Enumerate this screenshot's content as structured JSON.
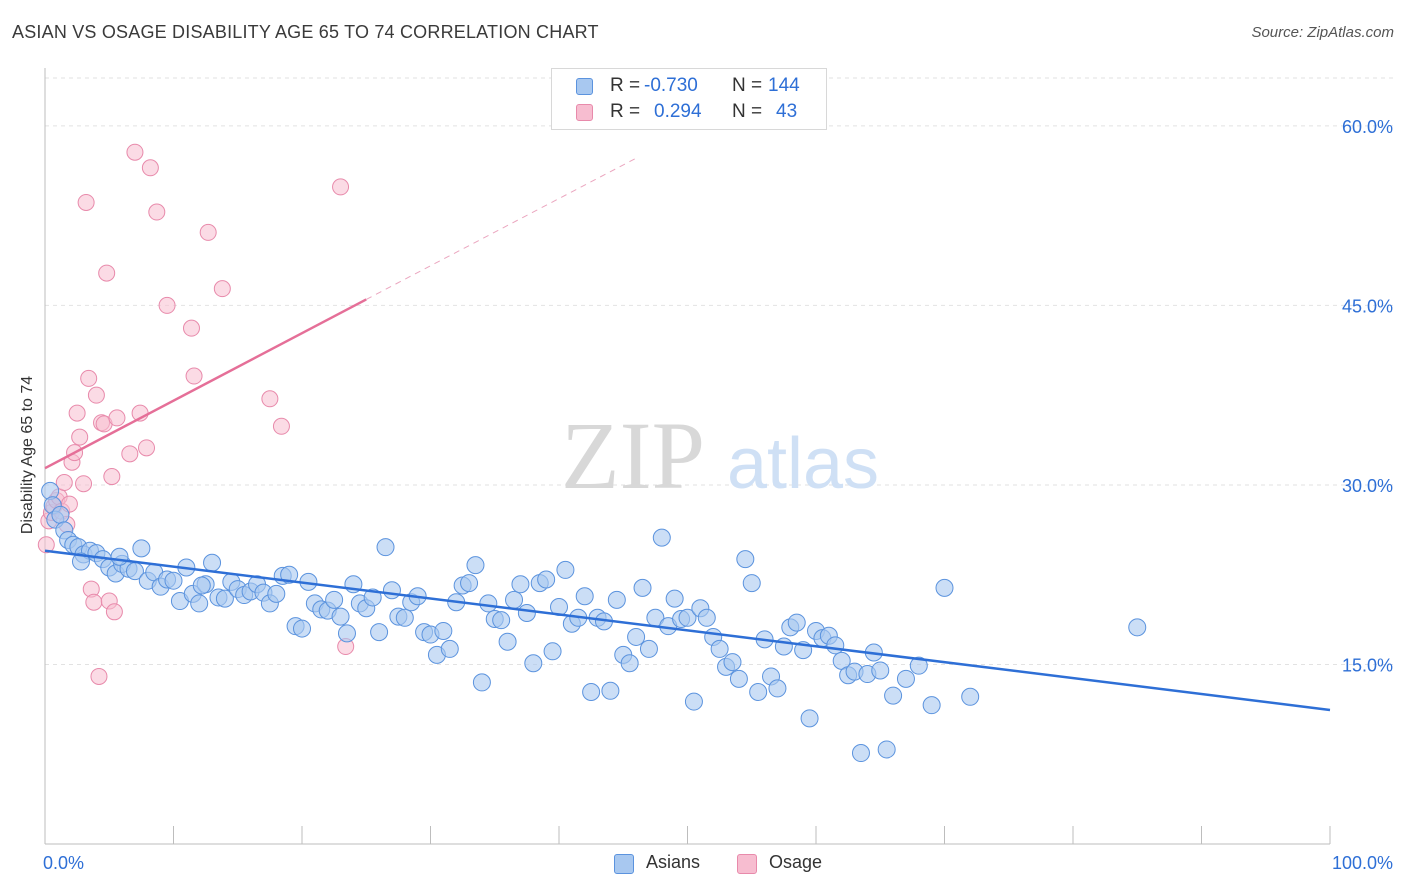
{
  "header": {
    "title": "ASIAN VS OSAGE DISABILITY AGE 65 TO 74 CORRELATION CHART",
    "source": "Source: ZipAtlas.com"
  },
  "watermark": {
    "zip": "ZIP",
    "atlas": "atlas"
  },
  "legend": {
    "rows": [
      {
        "r_label": "R =",
        "r_value": "-0.730",
        "n_label": "N =",
        "n_value": "144"
      },
      {
        "r_label": "R =",
        "r_value": "0.294",
        "n_label": "N =",
        "n_value": "43"
      }
    ]
  },
  "bottom_legend": {
    "asians": "Asians",
    "osage": "Osage"
  },
  "colors": {
    "asian_fill": "#a8c8f0",
    "asian_stroke": "#5b93de",
    "asian_line": "#2e6fd6",
    "osage_fill": "#f7bdd0",
    "osage_stroke": "#e88aab",
    "osage_line": "#e56f98",
    "axis_text": "#2e6fd6",
    "grid": "#e2e2e2"
  },
  "chart_data": {
    "type": "scatter",
    "title": "ASIAN VS OSAGE DISABILITY AGE 65 TO 74 CORRELATION CHART",
    "xlabel": "",
    "ylabel": "Disability Age 65 to 74",
    "xlim": [
      0,
      100
    ],
    "ylim": [
      0,
      64
    ],
    "x_tick_labels": [
      "0.0%",
      "100.0%"
    ],
    "y_ticks": [
      15,
      30,
      45,
      60
    ],
    "y_tick_labels": [
      "15.0%",
      "30.0%",
      "45.0%",
      "60.0%"
    ],
    "grid": true,
    "legend_position": "top-center",
    "series": [
      {
        "name": "Asians",
        "r": -0.73,
        "n": 144,
        "trend": {
          "x": [
            0,
            100
          ],
          "y": [
            24.5,
            11.2
          ]
        },
        "points": [
          [
            0.4,
            29.5
          ],
          [
            0.6,
            28.3
          ],
          [
            0.8,
            27.1
          ],
          [
            1.2,
            27.5
          ],
          [
            1.5,
            26.2
          ],
          [
            1.8,
            25.4
          ],
          [
            2.2,
            25.0
          ],
          [
            2.6,
            24.8
          ],
          [
            3.0,
            24.2
          ],
          [
            3.5,
            24.5
          ],
          [
            4.0,
            24.3
          ],
          [
            4.5,
            23.8
          ],
          [
            5.0,
            23.1
          ],
          [
            5.5,
            22.6
          ],
          [
            6.0,
            23.4
          ],
          [
            6.5,
            23.0
          ],
          [
            7.0,
            22.8
          ],
          [
            7.5,
            24.7
          ],
          [
            8.0,
            22.0
          ],
          [
            8.5,
            22.7
          ],
          [
            9.0,
            21.5
          ],
          [
            9.5,
            22.1
          ],
          [
            10.0,
            22.0
          ],
          [
            10.5,
            20.3
          ],
          [
            11.0,
            23.1
          ],
          [
            11.5,
            20.9
          ],
          [
            12.0,
            20.1
          ],
          [
            12.5,
            21.7
          ],
          [
            13.0,
            23.5
          ],
          [
            13.5,
            20.6
          ],
          [
            14.0,
            20.5
          ],
          [
            14.5,
            21.9
          ],
          [
            15.0,
            21.3
          ],
          [
            15.5,
            20.8
          ],
          [
            16.0,
            21.1
          ],
          [
            16.5,
            21.7
          ],
          [
            17.0,
            21.0
          ],
          [
            17.5,
            20.1
          ],
          [
            18.0,
            20.9
          ],
          [
            18.5,
            22.4
          ],
          [
            19.0,
            22.5
          ],
          [
            19.5,
            18.2
          ],
          [
            20.0,
            18.0
          ],
          [
            20.5,
            21.9
          ],
          [
            21.0,
            20.1
          ],
          [
            21.5,
            19.6
          ],
          [
            22.0,
            19.5
          ],
          [
            22.5,
            20.4
          ],
          [
            23.0,
            19.0
          ],
          [
            23.5,
            17.6
          ],
          [
            24.0,
            21.7
          ],
          [
            24.5,
            20.1
          ],
          [
            25.0,
            19.7
          ],
          [
            25.5,
            20.6
          ],
          [
            26.0,
            17.7
          ],
          [
            26.5,
            24.8
          ],
          [
            27.0,
            21.2
          ],
          [
            27.5,
            19.0
          ],
          [
            28.0,
            18.9
          ],
          [
            28.5,
            20.2
          ],
          [
            29.0,
            20.7
          ],
          [
            29.5,
            17.7
          ],
          [
            30.0,
            17.5
          ],
          [
            30.5,
            15.8
          ],
          [
            31.0,
            17.8
          ],
          [
            31.5,
            16.3
          ],
          [
            32.0,
            20.2
          ],
          [
            32.5,
            21.6
          ],
          [
            33.0,
            21.8
          ],
          [
            33.5,
            23.3
          ],
          [
            34.0,
            13.5
          ],
          [
            34.5,
            20.1
          ],
          [
            35.0,
            18.8
          ],
          [
            35.5,
            18.7
          ],
          [
            36.0,
            16.9
          ],
          [
            36.5,
            20.4
          ],
          [
            37.0,
            21.7
          ],
          [
            37.5,
            19.3
          ],
          [
            38.0,
            15.1
          ],
          [
            38.5,
            21.8
          ],
          [
            39.0,
            22.1
          ],
          [
            39.5,
            16.1
          ],
          [
            40.0,
            19.8
          ],
          [
            40.5,
            22.9
          ],
          [
            41.0,
            18.4
          ],
          [
            41.5,
            18.9
          ],
          [
            42.0,
            20.7
          ],
          [
            42.5,
            12.7
          ],
          [
            43.0,
            18.9
          ],
          [
            43.5,
            18.6
          ],
          [
            44.0,
            12.8
          ],
          [
            44.5,
            20.4
          ],
          [
            45.0,
            15.8
          ],
          [
            45.5,
            15.1
          ],
          [
            46.0,
            17.3
          ],
          [
            46.5,
            21.4
          ],
          [
            47.0,
            16.3
          ],
          [
            47.5,
            18.9
          ],
          [
            48.0,
            25.6
          ],
          [
            48.5,
            18.2
          ],
          [
            49.0,
            20.5
          ],
          [
            49.5,
            18.8
          ],
          [
            50.0,
            18.9
          ],
          [
            50.5,
            11.9
          ],
          [
            51.0,
            19.7
          ],
          [
            51.5,
            18.9
          ],
          [
            52.0,
            17.3
          ],
          [
            52.5,
            16.3
          ],
          [
            53.0,
            14.8
          ],
          [
            53.5,
            15.2
          ],
          [
            54.0,
            13.8
          ],
          [
            54.5,
            23.8
          ],
          [
            55.0,
            21.8
          ],
          [
            55.5,
            12.7
          ],
          [
            56.0,
            17.1
          ],
          [
            56.5,
            14.0
          ],
          [
            57.0,
            13.0
          ],
          [
            57.5,
            16.5
          ],
          [
            58.0,
            18.1
          ],
          [
            58.5,
            18.5
          ],
          [
            59.0,
            16.2
          ],
          [
            59.5,
            10.5
          ],
          [
            60.0,
            17.8
          ],
          [
            60.5,
            17.2
          ],
          [
            61.0,
            17.4
          ],
          [
            61.5,
            16.6
          ],
          [
            62.0,
            15.3
          ],
          [
            62.5,
            14.1
          ],
          [
            63.0,
            14.4
          ],
          [
            63.5,
            7.6
          ],
          [
            64.0,
            14.2
          ],
          [
            64.5,
            16.0
          ],
          [
            65.0,
            14.5
          ],
          [
            65.5,
            7.9
          ],
          [
            66.0,
            12.4
          ],
          [
            67.0,
            13.8
          ],
          [
            68.0,
            14.9
          ],
          [
            69.0,
            11.6
          ],
          [
            70.0,
            21.4
          ],
          [
            72.0,
            12.3
          ],
          [
            85.0,
            18.1
          ],
          [
            2.8,
            23.6
          ],
          [
            5.8,
            24.0
          ],
          [
            12.2,
            21.6
          ]
        ]
      },
      {
        "name": "Osage",
        "r": 0.294,
        "n": 43,
        "trend_solid": {
          "x": [
            0,
            25
          ],
          "y": [
            31.4,
            45.5
          ]
        },
        "trend_dashed": {
          "x": [
            25,
            46
          ],
          "y": [
            45.5,
            57.3
          ]
        },
        "points": [
          [
            0.1,
            25.0
          ],
          [
            0.3,
            27.0
          ],
          [
            0.5,
            27.7
          ],
          [
            0.7,
            28.2
          ],
          [
            0.9,
            28.7
          ],
          [
            1.1,
            29.0
          ],
          [
            1.3,
            27.8
          ],
          [
            1.5,
            30.2
          ],
          [
            1.7,
            26.7
          ],
          [
            1.9,
            28.4
          ],
          [
            2.1,
            31.9
          ],
          [
            2.3,
            32.7
          ],
          [
            2.5,
            36.0
          ],
          [
            2.7,
            34.0
          ],
          [
            3.0,
            30.1
          ],
          [
            3.2,
            53.6
          ],
          [
            3.4,
            38.9
          ],
          [
            3.6,
            21.3
          ],
          [
            3.8,
            20.2
          ],
          [
            4.0,
            37.5
          ],
          [
            4.2,
            14.0
          ],
          [
            4.4,
            35.2
          ],
          [
            4.6,
            35.1
          ],
          [
            4.8,
            47.7
          ],
          [
            5.0,
            20.3
          ],
          [
            5.2,
            30.7
          ],
          [
            5.4,
            19.4
          ],
          [
            5.6,
            35.6
          ],
          [
            6.6,
            32.6
          ],
          [
            7.0,
            57.8
          ],
          [
            7.4,
            36.0
          ],
          [
            8.2,
            56.5
          ],
          [
            8.7,
            52.8
          ],
          [
            9.5,
            45.0
          ],
          [
            11.4,
            43.1
          ],
          [
            11.6,
            39.1
          ],
          [
            12.7,
            51.1
          ],
          [
            13.8,
            46.4
          ],
          [
            17.5,
            37.2
          ],
          [
            18.4,
            34.9
          ],
          [
            23.0,
            54.9
          ],
          [
            23.4,
            16.5
          ],
          [
            7.9,
            33.1
          ]
        ]
      }
    ]
  }
}
